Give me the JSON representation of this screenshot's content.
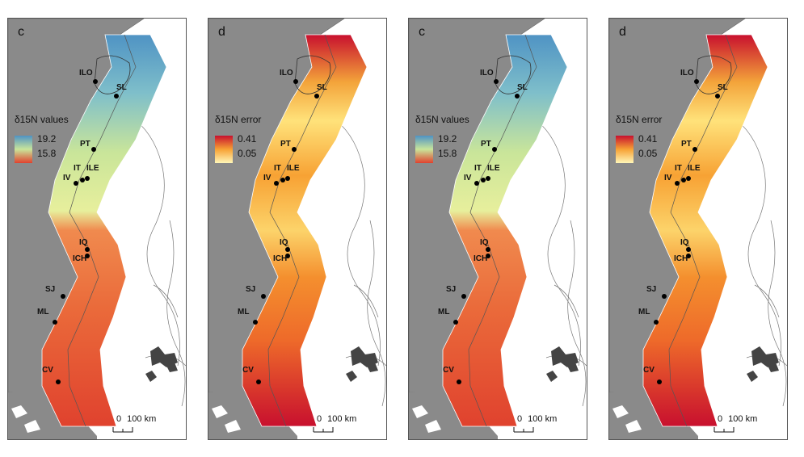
{
  "panels": [
    {
      "letter": "c",
      "variant": "values",
      "legend_title": "δ15N values",
      "legend_max": "19.2",
      "legend_min": "15.8"
    },
    {
      "letter": "d",
      "variant": "error",
      "legend_title": "δ15N error",
      "legend_max": "0.41",
      "legend_min": "0.05"
    },
    {
      "letter": "c",
      "variant": "values",
      "legend_title": "δ15N values",
      "legend_max": "19.2",
      "legend_min": "15.8"
    },
    {
      "letter": "d",
      "variant": "error",
      "legend_title": "δ15N error",
      "legend_max": "0.41",
      "legend_min": "0.05"
    }
  ],
  "sites": [
    "ILO",
    "SL",
    "PT",
    "IT",
    "ILE",
    "IV",
    "IQ",
    "ICH",
    "SJ",
    "ML",
    "CV"
  ],
  "scale_bar": {
    "zero": "0",
    "label": "100 km"
  },
  "colors": {
    "land": "#8a8a8a",
    "values_high": "#4f93c4",
    "values_mid": "#c9e59a",
    "values_low": "#e0422e",
    "error_high": "#c8102e",
    "error_low": "#fff6b8",
    "coastline": "#555555"
  }
}
